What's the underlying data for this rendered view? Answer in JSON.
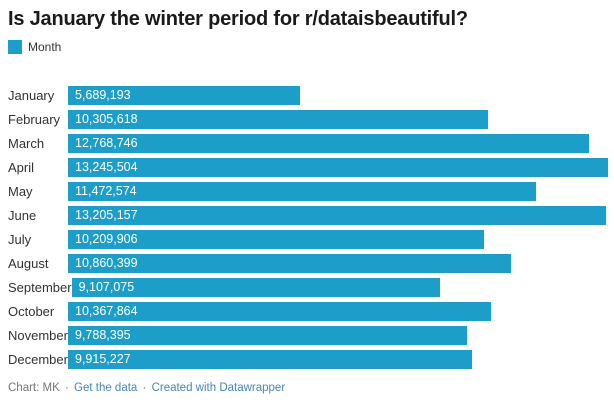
{
  "header": {
    "title": "Is January the winter period for r/dataisbeautiful?"
  },
  "legend": {
    "label": "Month"
  },
  "colors": {
    "bar": "#1c9ec8",
    "title": "#1a1a1a",
    "label": "#333333",
    "value": "#ffffff",
    "footer_text": "#767676",
    "footer_link": "#4686b8"
  },
  "footer": {
    "credit": "Chart: MK",
    "separator": "·",
    "links": [
      {
        "label": "Get the data"
      },
      {
        "label": "Created with Datawrapper"
      }
    ]
  },
  "chart_data": {
    "type": "bar",
    "orientation": "horizontal",
    "title": "Is January the winter period for r/dataisbeautiful?",
    "legend_entries": [
      "Month"
    ],
    "legend_position": "top-left",
    "grid": false,
    "xlim": [
      0,
      13245504
    ],
    "categories": [
      "January",
      "February",
      "March",
      "April",
      "May",
      "June",
      "July",
      "August",
      "September",
      "October",
      "November",
      "December"
    ],
    "values": [
      5689193,
      10305618,
      12768746,
      13245504,
      11472574,
      13205157,
      10209906,
      10860399,
      9107075,
      10367864,
      9788395,
      9915227
    ],
    "value_labels": [
      "5,689,193",
      "10,305,618",
      "12,768,746",
      "13,245,504",
      "11,472,574",
      "13,205,157",
      "10,209,906",
      "10,860,399",
      "9,107,075",
      "10,367,864",
      "9,788,395",
      "9,915,227"
    ]
  }
}
